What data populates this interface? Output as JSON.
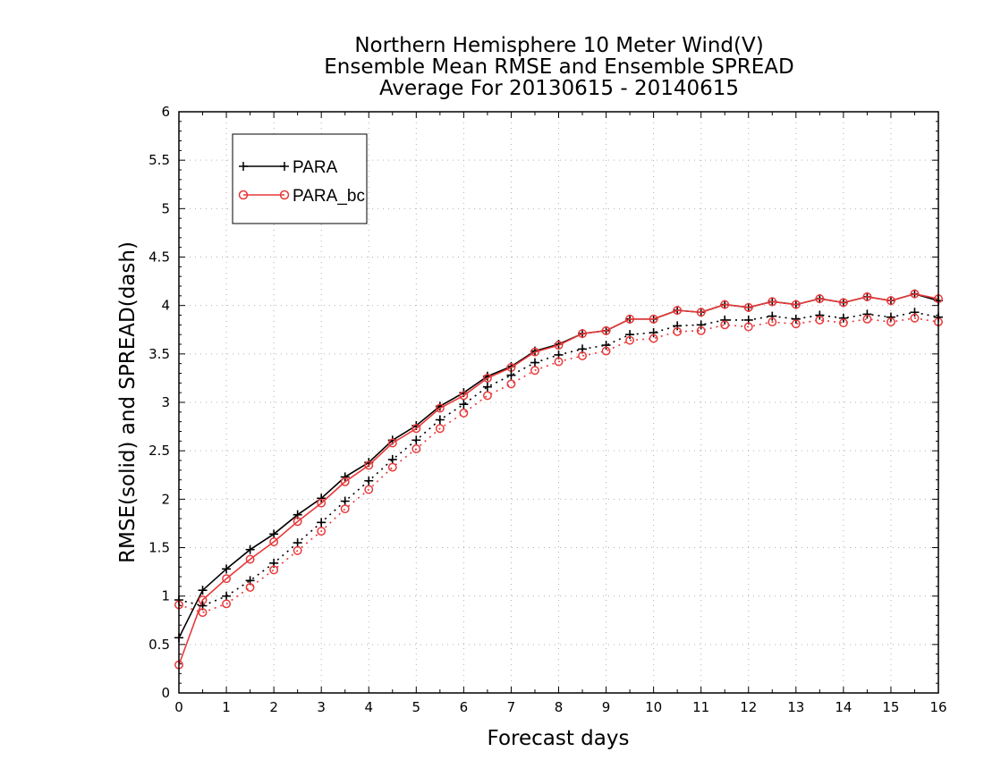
{
  "chart_data": {
    "type": "line",
    "title": [
      "Northern Hemisphere 10 Meter Wind(V)",
      "Ensemble Mean RMSE and Ensemble SPREAD",
      "Average For 20130615 - 20140615"
    ],
    "xlabel": "Forecast days",
    "ylabel": "RMSE(solid) and SPREAD(dash)",
    "xlim": [
      0,
      16
    ],
    "ylim": [
      0,
      6
    ],
    "x_ticks": [
      "0",
      "1",
      "2",
      "3",
      "4",
      "5",
      "6",
      "7",
      "8",
      "9",
      "10",
      "11",
      "12",
      "13",
      "14",
      "15",
      "16"
    ],
    "y_ticks": [
      "0",
      "0.5",
      "1",
      "1.5",
      "2",
      "2.5",
      "3",
      "3.5",
      "4",
      "4.5",
      "5",
      "5.5",
      "6"
    ],
    "grid": true,
    "legend_position": "top-left",
    "x": [
      0,
      0.5,
      1,
      1.5,
      2,
      2.5,
      3,
      3.5,
      4,
      4.5,
      5,
      5.5,
      6,
      6.5,
      7,
      7.5,
      8,
      8.5,
      9,
      9.5,
      10,
      10.5,
      11,
      11.5,
      12,
      12.5,
      13,
      13.5,
      14,
      14.5,
      15,
      15.5,
      16
    ],
    "series": [
      {
        "name": "PARA",
        "metric": "RMSE",
        "style": "solid",
        "marker": "plus",
        "color": "#000000",
        "values": [
          0.57,
          1.06,
          1.28,
          1.48,
          1.64,
          1.84,
          2.01,
          2.23,
          2.38,
          2.61,
          2.76,
          2.96,
          3.1,
          3.27,
          3.37,
          3.53,
          3.6,
          3.71,
          3.74,
          3.86,
          3.86,
          3.95,
          3.93,
          4.01,
          3.98,
          4.04,
          4.01,
          4.07,
          4.03,
          4.09,
          4.05,
          4.12,
          4.05
        ]
      },
      {
        "name": "PARA_bc",
        "metric": "RMSE",
        "style": "solid",
        "marker": "circle",
        "color": "#e8393a",
        "values": [
          0.29,
          0.96,
          1.18,
          1.38,
          1.56,
          1.77,
          1.96,
          2.18,
          2.35,
          2.58,
          2.73,
          2.94,
          3.07,
          3.25,
          3.36,
          3.52,
          3.59,
          3.71,
          3.74,
          3.86,
          3.86,
          3.95,
          3.93,
          4.01,
          3.98,
          4.04,
          4.01,
          4.07,
          4.03,
          4.09,
          4.05,
          4.12,
          4.07
        ]
      },
      {
        "name": "",
        "metric": "SPREAD",
        "style": "dash",
        "marker": "plus",
        "color": "#000000",
        "values": [
          0.96,
          0.9,
          1.0,
          1.16,
          1.34,
          1.55,
          1.76,
          1.98,
          2.19,
          2.41,
          2.61,
          2.82,
          2.98,
          3.16,
          3.28,
          3.41,
          3.49,
          3.55,
          3.59,
          3.7,
          3.72,
          3.79,
          3.8,
          3.85,
          3.85,
          3.89,
          3.86,
          3.9,
          3.87,
          3.91,
          3.88,
          3.93,
          3.88
        ]
      },
      {
        "name": "",
        "metric": "SPREAD",
        "style": "dash",
        "marker": "circle",
        "color": "#e8393a",
        "values": [
          0.91,
          0.83,
          0.92,
          1.09,
          1.27,
          1.47,
          1.67,
          1.9,
          2.1,
          2.33,
          2.52,
          2.73,
          2.89,
          3.07,
          3.19,
          3.33,
          3.42,
          3.48,
          3.53,
          3.64,
          3.66,
          3.73,
          3.74,
          3.8,
          3.78,
          3.83,
          3.81,
          3.85,
          3.82,
          3.86,
          3.83,
          3.87,
          3.83
        ]
      }
    ]
  }
}
